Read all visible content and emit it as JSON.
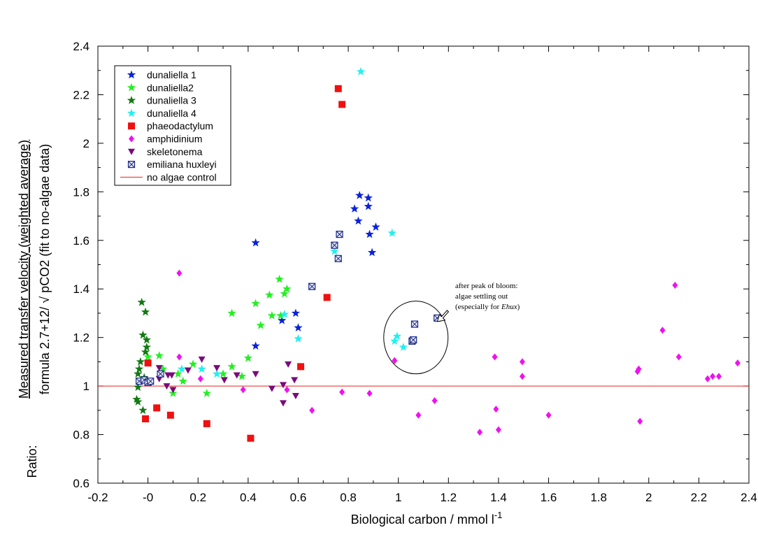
{
  "chart_data": {
    "type": "scatter",
    "xlabel": "Biological carbon / mmol l",
    "xlabel_superscript": "-1",
    "ylabel_prefix": "Ratio:",
    "ylabel_line1": "Measured transfer velocity (weighted average)",
    "ylabel_line2": "formula 2.7+12/ √ pCO2 (fit to no-algae data)",
    "xlim": [
      -0.2,
      2.4
    ],
    "ylim": [
      0.6,
      2.4
    ],
    "xticks": [
      "-0.2",
      "-0",
      "0.2",
      "0.4",
      "0.6",
      "0.8",
      "1",
      "1.2",
      "1.4",
      "1.6",
      "1.8",
      "2",
      "2.2",
      "2.4"
    ],
    "yticks": [
      "0.6",
      "0.8",
      "1",
      "1.2",
      "1.4",
      "1.6",
      "1.8",
      "2",
      "2.2",
      "2.4"
    ],
    "grid": false,
    "legend_position": "top-left",
    "reference_line": {
      "name": "no algae control",
      "y": 1.0,
      "color": "#e8231f"
    },
    "annotation": {
      "lines": [
        "after peak of bloom:",
        "algae settling out",
        "(especially for ",
        "Ehux",
        ")"
      ],
      "circle_center": [
        1.07,
        1.2
      ],
      "arrow_to": [
        1.15,
        1.28
      ]
    },
    "series": [
      {
        "name": "dunaliella 1",
        "marker": "star",
        "color": "#0a22d8",
        "points": [
          [
            0.43,
            1.59
          ],
          [
            0.43,
            1.165
          ],
          [
            0.535,
            1.27
          ],
          [
            0.59,
            1.3
          ],
          [
            0.6,
            1.24
          ],
          [
            0.825,
            1.73
          ],
          [
            0.845,
            1.785
          ],
          [
            0.84,
            1.68
          ],
          [
            0.88,
            1.775
          ],
          [
            0.88,
            1.74
          ],
          [
            0.885,
            1.625
          ],
          [
            0.91,
            1.655
          ],
          [
            0.895,
            1.55
          ]
        ]
      },
      {
        "name": "dunaliella2",
        "marker": "star",
        "color": "#22f022",
        "points": [
          [
            0.0,
            1.12
          ],
          [
            0.045,
            1.125
          ],
          [
            0.06,
            1.07
          ],
          [
            0.1,
            0.97
          ],
          [
            0.12,
            1.05
          ],
          [
            0.14,
            1.02
          ],
          [
            0.18,
            1.09
          ],
          [
            0.235,
            0.97
          ],
          [
            0.3,
            1.05
          ],
          [
            0.335,
            1.3
          ],
          [
            0.335,
            1.08
          ],
          [
            0.375,
            1.04
          ],
          [
            0.4,
            1.115
          ],
          [
            0.43,
            1.34
          ],
          [
            0.45,
            1.25
          ],
          [
            0.485,
            1.375
          ],
          [
            0.495,
            1.29
          ],
          [
            0.525,
            1.44
          ],
          [
            0.53,
            1.29
          ],
          [
            0.545,
            1.38
          ],
          [
            0.555,
            1.4
          ]
        ]
      },
      {
        "name": "dunaliella 3",
        "marker": "star",
        "color": "#127a12",
        "points": [
          [
            -0.025,
            1.345
          ],
          [
            -0.01,
            1.305
          ],
          [
            -0.02,
            1.21
          ],
          [
            -0.005,
            1.19
          ],
          [
            -0.005,
            1.16
          ],
          [
            -0.01,
            1.14
          ],
          [
            -0.03,
            1.1
          ],
          [
            -0.04,
            1.05
          ],
          [
            -0.04,
            0.995
          ],
          [
            -0.045,
            0.945
          ],
          [
            -0.04,
            0.935
          ],
          [
            -0.02,
            0.9
          ],
          [
            -0.035,
            1.07
          ],
          [
            -0.015,
            1.035
          ]
        ]
      },
      {
        "name": "dunaliella 4",
        "marker": "star",
        "color": "#22f0f0",
        "points": [
          [
            0.85,
            2.295
          ],
          [
            0.975,
            1.63
          ],
          [
            0.745,
            1.555
          ],
          [
            0.6,
            1.195
          ],
          [
            0.135,
            1.07
          ],
          [
            0.215,
            1.07
          ],
          [
            0.275,
            1.05
          ],
          [
            0.545,
            1.295
          ],
          [
            0.985,
            1.185
          ],
          [
            0.995,
            1.205
          ],
          [
            1.02,
            1.16
          ]
        ]
      },
      {
        "name": "phaeodactylum",
        "marker": "square",
        "color": "#f01010",
        "points": [
          [
            0.76,
            2.225
          ],
          [
            0.775,
            2.16
          ],
          [
            0.715,
            1.365
          ],
          [
            0.61,
            1.08
          ],
          [
            0.0,
            1.095
          ],
          [
            0.035,
            0.91
          ],
          [
            -0.01,
            0.865
          ],
          [
            0.09,
            0.88
          ],
          [
            0.235,
            0.845
          ],
          [
            0.41,
            0.785
          ]
        ]
      },
      {
        "name": "amphidinium",
        "marker": "diamond",
        "color": "#f010f0",
        "points": [
          [
            0.125,
            1.465
          ],
          [
            0.125,
            1.12
          ],
          [
            0.21,
            1.03
          ],
          [
            0.38,
            0.985
          ],
          [
            0.555,
            0.985
          ],
          [
            0.655,
            0.9
          ],
          [
            0.775,
            0.975
          ],
          [
            0.885,
            0.97
          ],
          [
            0.985,
            1.105
          ],
          [
            1.08,
            0.88
          ],
          [
            1.145,
            0.94
          ],
          [
            1.325,
            0.81
          ],
          [
            1.385,
            1.12
          ],
          [
            1.39,
            0.905
          ],
          [
            1.4,
            0.82
          ],
          [
            1.495,
            1.1
          ],
          [
            1.495,
            1.04
          ],
          [
            1.6,
            0.88
          ],
          [
            1.955,
            1.06
          ],
          [
            1.96,
            1.07
          ],
          [
            1.965,
            0.855
          ],
          [
            2.055,
            1.23
          ],
          [
            2.105,
            1.415
          ],
          [
            2.12,
            1.12
          ],
          [
            2.235,
            1.03
          ],
          [
            2.255,
            1.04
          ],
          [
            2.28,
            1.04
          ],
          [
            2.355,
            1.095
          ]
        ]
      },
      {
        "name": "skeletonema",
        "marker": "triangle-down",
        "color": "#7a0a7a",
        "points": [
          [
            0.045,
            1.075
          ],
          [
            0.045,
            1.03
          ],
          [
            0.075,
            1.0
          ],
          [
            0.095,
            1.045
          ],
          [
            0.1,
            0.985
          ],
          [
            0.16,
            1.065
          ],
          [
            0.215,
            1.11
          ],
          [
            0.275,
            1.075
          ],
          [
            0.305,
            1.025
          ],
          [
            0.355,
            1.045
          ],
          [
            0.43,
            1.05
          ],
          [
            0.495,
            0.99
          ],
          [
            0.54,
            0.93
          ],
          [
            0.54,
            1.005
          ],
          [
            0.56,
            1.09
          ],
          [
            0.585,
            1.025
          ],
          [
            0.59,
            0.96
          ],
          [
            0.08,
            1.045
          ]
        ]
      },
      {
        "name": "emiliana huxleyi",
        "marker": "boxed-x",
        "color": "#1a2a8a",
        "points": [
          [
            -0.035,
            1.02
          ],
          [
            -0.015,
            1.025
          ],
          [
            0.0,
            1.015
          ],
          [
            0.01,
            1.02
          ],
          [
            0.05,
            1.05
          ],
          [
            0.655,
            1.41
          ],
          [
            0.745,
            1.58
          ],
          [
            0.765,
            1.625
          ],
          [
            0.76,
            1.525
          ],
          [
            1.055,
            1.185
          ],
          [
            1.06,
            1.19
          ],
          [
            1.065,
            1.255
          ],
          [
            1.155,
            1.28
          ]
        ]
      }
    ]
  }
}
